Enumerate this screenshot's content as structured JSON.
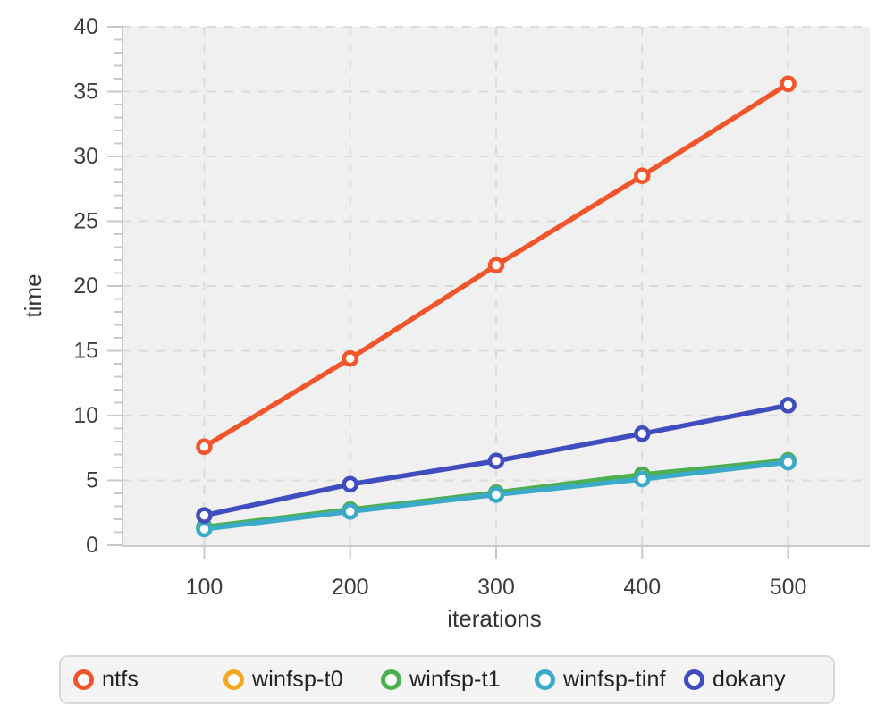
{
  "chart_data": {
    "type": "line",
    "title": "",
    "xlabel": "iterations",
    "ylabel": "time",
    "x": [
      100,
      200,
      300,
      400,
      500
    ],
    "series": [
      {
        "name": "ntfs",
        "color": "#F1552B",
        "values": [
          7.6,
          14.4,
          21.6,
          28.5,
          35.6
        ]
      },
      {
        "name": "winfsp-t0",
        "color": "#F5A81F",
        "values": [
          1.35,
          2.7,
          4.0,
          5.3,
          6.45
        ]
      },
      {
        "name": "winfsp-t1",
        "color": "#4CAF50",
        "values": [
          1.4,
          2.75,
          4.05,
          5.45,
          6.55
        ]
      },
      {
        "name": "winfsp-tinf",
        "color": "#3BAAC9",
        "values": [
          1.25,
          2.6,
          3.9,
          5.1,
          6.4
        ]
      },
      {
        "name": "dokany",
        "color": "#3F4DBE",
        "values": [
          2.3,
          4.7,
          6.5,
          8.6,
          10.8
        ]
      }
    ],
    "xlim": [
      44,
      556
    ],
    "ylim": [
      0,
      40
    ],
    "x_ticks": [
      100,
      200,
      300,
      400,
      500
    ],
    "y_ticks": [
      0,
      5,
      10,
      15,
      20,
      25,
      30,
      35,
      40
    ],
    "y_minor_step": 1,
    "grid": "dashed",
    "marker": "open-circle",
    "legend_position": "bottom"
  },
  "legend": {
    "position": "bottom",
    "items": [
      "ntfs",
      "winfsp-t0",
      "winfsp-t1",
      "winfsp-tinf",
      "dokany"
    ]
  },
  "colors": {
    "plot_bg": "#F0F0F0",
    "grid": "#DADADA",
    "axis": "#C9C9C9",
    "tick_text": "#3D3D3D",
    "axis_title_text": "#333333",
    "legend_bg": "#F4F4F4",
    "legend_border": "#D9D9D9",
    "legend_text": "#222222"
  }
}
